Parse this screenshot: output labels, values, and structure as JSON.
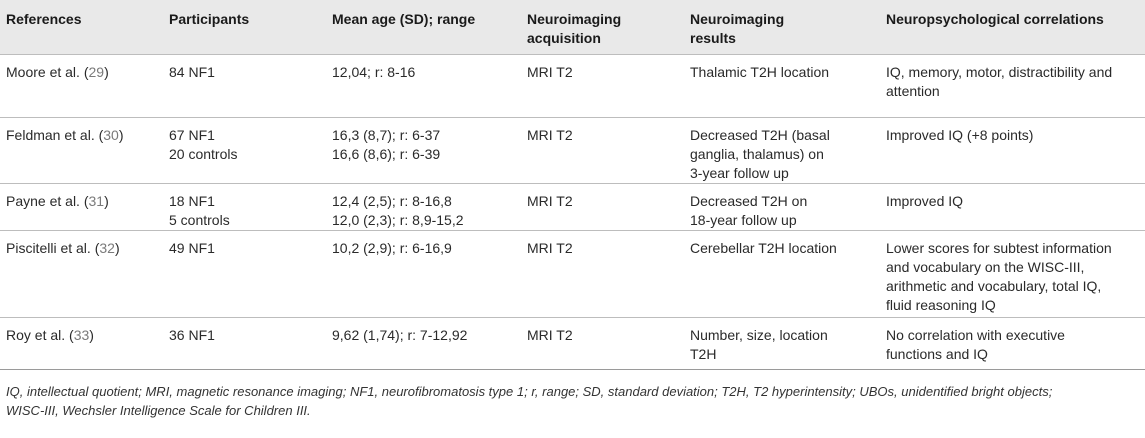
{
  "headers": [
    {
      "line1": "References",
      "line2": ""
    },
    {
      "line1": "Participants",
      "line2": ""
    },
    {
      "line1": "Mean age (SD); range",
      "line2": ""
    },
    {
      "line1": "Neuroimaging",
      "line2": "acquisition"
    },
    {
      "line1": "Neuroimaging",
      "line2": "results"
    },
    {
      "line1": "Neuropsychological correlations",
      "line2": ""
    }
  ],
  "rows": [
    {
      "ref_name": "Moore et al. (",
      "ref_num": "29",
      "ref_close": ")",
      "participants": [
        "84 NF1"
      ],
      "age": [
        "12,04; r: 8-16"
      ],
      "acquisition": "MRI T2",
      "results": [
        "Thalamic T2H location"
      ],
      "correlations": [
        "IQ, memory, motor, distractibility and",
        "attention"
      ]
    },
    {
      "ref_name": "Feldman et al. (",
      "ref_num": "30",
      "ref_close": ")",
      "participants": [
        "67 NF1",
        "20 controls"
      ],
      "age": [
        "16,3 (8,7); r: 6-37",
        "16,6 (8,6); r: 6-39"
      ],
      "acquisition": "MRI T2",
      "results": [
        "Decreased T2H (basal",
        "ganglia, thalamus) on",
        "3-year follow up"
      ],
      "correlations": [
        "Improved IQ (+8 points)"
      ]
    },
    {
      "ref_name": "Payne et al. (",
      "ref_num": "31",
      "ref_close": ")",
      "participants": [
        "18 NF1",
        "5 controls"
      ],
      "age": [
        "12,4 (2,5); r: 8-16,8",
        "12,0 (2,3); r: 8,9-15,2"
      ],
      "acquisition": "MRI T2",
      "results": [
        "Decreased T2H on",
        "18-year follow up"
      ],
      "correlations": [
        "Improved IQ"
      ]
    },
    {
      "ref_name": "Piscitelli et al. (",
      "ref_num": "32",
      "ref_close": ")",
      "participants": [
        "49 NF1"
      ],
      "age": [
        "10,2 (2,9); r: 6-16,9"
      ],
      "acquisition": "MRI T2",
      "results": [
        "Cerebellar T2H location"
      ],
      "correlations": [
        "Lower scores for subtest information",
        "and vocabulary on the WISC-III,",
        "arithmetic and vocabulary, total IQ,",
        "fluid reasoning IQ"
      ]
    },
    {
      "ref_name": "Roy et al. (",
      "ref_num": "33",
      "ref_close": ")",
      "participants": [
        "36 NF1"
      ],
      "age": [
        "9,62 (1,74); r: 7-12,92"
      ],
      "acquisition": "MRI T2",
      "results": [
        "Number, size, location",
        "T2H"
      ],
      "correlations": [
        "No correlation with executive",
        "functions and IQ"
      ]
    }
  ],
  "footnote": {
    "line1": "IQ, intellectual quotient; MRI, magnetic resonance imaging; NF1, neurofibromatosis type 1; r, range; SD, standard deviation; T2H, T2 hyperintensity; UBOs, unidentified bright objects;",
    "line2": "WISC-III, Wechsler Intelligence Scale for Children III."
  }
}
